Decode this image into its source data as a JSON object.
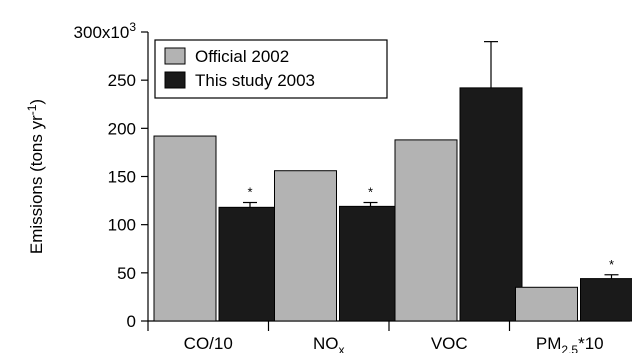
{
  "chart_data": {
    "type": "bar",
    "categories": [
      {
        "label": "CO/10",
        "sub": "",
        "tail": ""
      },
      {
        "label": "NO",
        "sub": "x",
        "tail": ""
      },
      {
        "label": "VOC",
        "sub": "",
        "tail": ""
      },
      {
        "label": "PM",
        "sub": "2.5",
        "tail": "*10"
      }
    ],
    "series": [
      {
        "name": "Official 2002",
        "color": "#b3b3b3",
        "values": [
          192000,
          156000,
          188000,
          35000
        ]
      },
      {
        "name": "This study 2003",
        "color": "#1a1a1a",
        "values": [
          118000,
          119000,
          242000,
          44000
        ]
      }
    ],
    "error_plus": [
      [
        0,
        0,
        0,
        0
      ],
      [
        5000,
        4000,
        48000,
        4000
      ]
    ],
    "annotations": [
      {
        "series": 1,
        "category": 0,
        "text": "*"
      },
      {
        "series": 1,
        "category": 1,
        "text": "*"
      },
      {
        "series": 1,
        "category": 3,
        "text": "*"
      }
    ],
    "ylabel": {
      "main": "Emissions (tons yr",
      "sup": "-1",
      "close": ")"
    },
    "ylim": [
      0,
      300000
    ],
    "yticks": [
      {
        "value": 0,
        "label": "0"
      },
      {
        "value": 50000,
        "label": "50"
      },
      {
        "value": 100000,
        "label": "100"
      },
      {
        "value": 150000,
        "label": "150"
      },
      {
        "value": 200000,
        "label": "200"
      },
      {
        "value": 250000,
        "label": "250"
      },
      {
        "value": 300000,
        "label": "300x10",
        "sup": "3"
      }
    ],
    "legend_position": "top-left",
    "grid": false
  }
}
